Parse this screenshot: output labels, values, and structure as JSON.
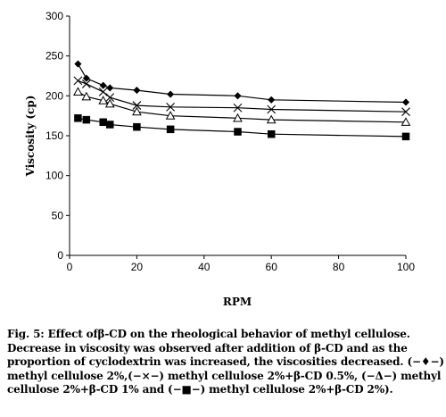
{
  "chart_data": {
    "type": "line",
    "xlabel": "RPM",
    "ylabel": "Viscosity (cp)",
    "xlim": [
      0,
      100
    ],
    "ylim": [
      0,
      300
    ],
    "xticks": [
      0,
      20,
      40,
      60,
      80,
      100
    ],
    "yticks": [
      0,
      50,
      100,
      150,
      200,
      250,
      300
    ],
    "grid": false,
    "legend": "none",
    "series": [
      {
        "name": "methyl cellulose 2%",
        "marker": "diamond",
        "x": [
          2.5,
          5,
          10,
          12,
          20,
          30,
          50,
          60,
          100
        ],
        "values": [
          240,
          222,
          213,
          210,
          207,
          202,
          200,
          195,
          192
        ]
      },
      {
        "name": "methyl cellulose 2%+β-CD 0.5%",
        "marker": "cross",
        "x": [
          2.5,
          5,
          10,
          12,
          20,
          30,
          50,
          60,
          100
        ],
        "values": [
          219,
          215,
          205,
          198,
          188,
          186,
          185,
          183,
          180
        ]
      },
      {
        "name": "methyl cellulose 2%+β-CD 1%",
        "marker": "triangle",
        "x": [
          2.5,
          5,
          10,
          12,
          20,
          30,
          50,
          60,
          100
        ],
        "values": [
          205,
          199,
          194,
          190,
          180,
          175,
          172,
          170,
          167
        ]
      },
      {
        "name": "methyl cellulose 2%+β-CD 2%",
        "marker": "square",
        "x": [
          2.5,
          5,
          10,
          12,
          20,
          30,
          50,
          60,
          100
        ],
        "values": [
          172,
          170,
          167,
          164,
          161,
          158,
          155,
          152,
          149
        ]
      }
    ]
  },
  "caption": {
    "lines": [
      "Fig. 5: Effect ofβ-CD on the rheological behavior of methyl cellulose.",
      "Decrease in viscosity was observed after addition of β-CD and as the",
      "proportion of cyclodextrin was increased, the viscosities decreased. (−♦−)",
      "methyl cellulose 2%,(−×−) methyl cellulose 2%+β-CD 0.5%, (−Δ−) methyl",
      "cellulose 2%+β-CD 1% and (−■−) methyl cellulose 2%+β-CD 2%)."
    ]
  },
  "colors": {
    "series": "#000000",
    "triangle_fill": "#ffffff"
  }
}
